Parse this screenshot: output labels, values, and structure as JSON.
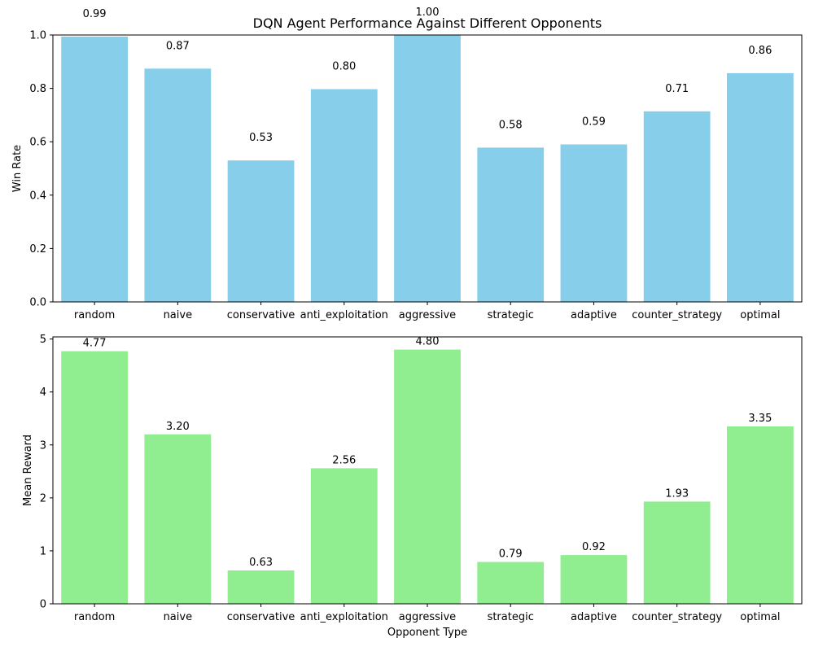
{
  "title": "DQN Agent Performance Against Different Opponents",
  "chart_data": [
    {
      "type": "bar",
      "title": "DQN Agent Performance Against Different Opponents",
      "xlabel": "",
      "ylabel": "Win Rate",
      "categories": [
        "random",
        "naive",
        "conservative",
        "anti_exploitation",
        "aggressive",
        "strategic",
        "adaptive",
        "counter_strategy",
        "optimal"
      ],
      "values": [
        0.994,
        0.874,
        0.53,
        0.797,
        1.0,
        0.578,
        0.59,
        0.714,
        0.857
      ],
      "value_labels": [
        "0.99",
        "0.87",
        "0.53",
        "0.80",
        "1.00",
        "0.58",
        "0.59",
        "0.71",
        "0.86"
      ],
      "ylim": [
        0,
        1
      ],
      "yticks": [
        0.0,
        0.2,
        0.4,
        0.6,
        0.8,
        1.0
      ],
      "ytick_labels": [
        "0.0",
        "0.2",
        "0.4",
        "0.6",
        "0.8",
        "1.0"
      ],
      "bar_color": "#87CEEB",
      "grid": false
    },
    {
      "type": "bar",
      "title": "",
      "xlabel": "Opponent Type",
      "ylabel": "Mean Reward",
      "categories": [
        "random",
        "naive",
        "conservative",
        "anti_exploitation",
        "aggressive",
        "strategic",
        "adaptive",
        "counter_strategy",
        "optimal"
      ],
      "values": [
        4.77,
        3.2,
        0.63,
        2.56,
        4.8,
        0.79,
        0.92,
        1.93,
        3.35
      ],
      "value_labels": [
        "4.77",
        "3.20",
        "0.63",
        "2.56",
        "4.80",
        "0.79",
        "0.92",
        "1.93",
        "3.35"
      ],
      "ylim": [
        0,
        5.04
      ],
      "yticks": [
        0,
        1,
        2,
        3,
        4,
        5
      ],
      "ytick_labels": [
        "0",
        "1",
        "2",
        "3",
        "4",
        "5"
      ],
      "bar_color": "#90EE90",
      "grid": false
    }
  ]
}
